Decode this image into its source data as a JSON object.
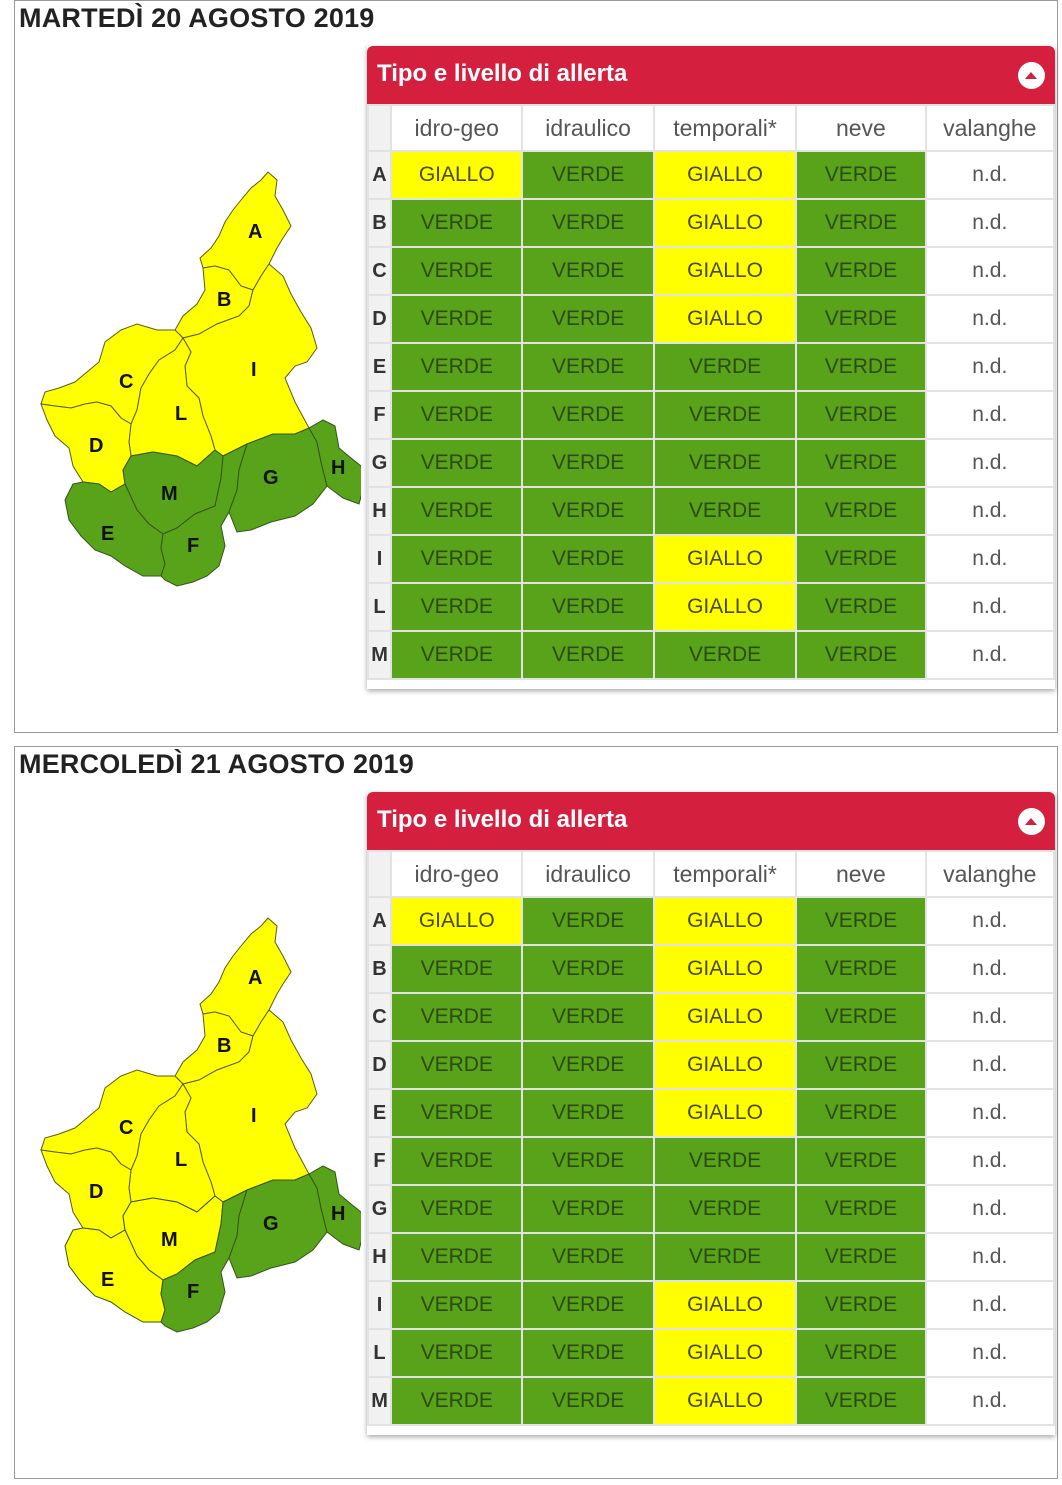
{
  "colors": {
    "VERDE": "#58a31a",
    "GIALLO": "#ffff00",
    "header": "#d41f3e"
  },
  "panel": {
    "title": "Tipo e livello di allerta",
    "collapse_icon": "chevron-up-icon"
  },
  "columns": [
    "idro-geo",
    "idraulico",
    "temporali*",
    "neve",
    "valanghe"
  ],
  "days": [
    {
      "title": "MARTEDÌ 20 AGOSTO 2019",
      "map_zones": {
        "A": "GIALLO",
        "B": "GIALLO",
        "C": "GIALLO",
        "D": "GIALLO",
        "E": "VERDE",
        "F": "VERDE",
        "G": "VERDE",
        "H": "VERDE",
        "I": "GIALLO",
        "L": "GIALLO",
        "M": "VERDE"
      },
      "rows": [
        {
          "zone": "A",
          "values": [
            "GIALLO",
            "VERDE",
            "GIALLO",
            "VERDE",
            "n.d."
          ]
        },
        {
          "zone": "B",
          "values": [
            "VERDE",
            "VERDE",
            "GIALLO",
            "VERDE",
            "n.d."
          ]
        },
        {
          "zone": "C",
          "values": [
            "VERDE",
            "VERDE",
            "GIALLO",
            "VERDE",
            "n.d."
          ]
        },
        {
          "zone": "D",
          "values": [
            "VERDE",
            "VERDE",
            "GIALLO",
            "VERDE",
            "n.d."
          ]
        },
        {
          "zone": "E",
          "values": [
            "VERDE",
            "VERDE",
            "VERDE",
            "VERDE",
            "n.d."
          ]
        },
        {
          "zone": "F",
          "values": [
            "VERDE",
            "VERDE",
            "VERDE",
            "VERDE",
            "n.d."
          ]
        },
        {
          "zone": "G",
          "values": [
            "VERDE",
            "VERDE",
            "VERDE",
            "VERDE",
            "n.d."
          ]
        },
        {
          "zone": "H",
          "values": [
            "VERDE",
            "VERDE",
            "VERDE",
            "VERDE",
            "n.d."
          ]
        },
        {
          "zone": "I",
          "values": [
            "VERDE",
            "VERDE",
            "GIALLO",
            "VERDE",
            "n.d."
          ]
        },
        {
          "zone": "L",
          "values": [
            "VERDE",
            "VERDE",
            "GIALLO",
            "VERDE",
            "n.d."
          ]
        },
        {
          "zone": "M",
          "values": [
            "VERDE",
            "VERDE",
            "VERDE",
            "VERDE",
            "n.d."
          ]
        }
      ]
    },
    {
      "title": "MERCOLEDÌ 21 AGOSTO 2019",
      "map_zones": {
        "A": "GIALLO",
        "B": "GIALLO",
        "C": "GIALLO",
        "D": "GIALLO",
        "E": "GIALLO",
        "F": "VERDE",
        "G": "VERDE",
        "H": "VERDE",
        "I": "GIALLO",
        "L": "GIALLO",
        "M": "GIALLO"
      },
      "rows": [
        {
          "zone": "A",
          "values": [
            "GIALLO",
            "VERDE",
            "GIALLO",
            "VERDE",
            "n.d."
          ]
        },
        {
          "zone": "B",
          "values": [
            "VERDE",
            "VERDE",
            "GIALLO",
            "VERDE",
            "n.d."
          ]
        },
        {
          "zone": "C",
          "values": [
            "VERDE",
            "VERDE",
            "GIALLO",
            "VERDE",
            "n.d."
          ]
        },
        {
          "zone": "D",
          "values": [
            "VERDE",
            "VERDE",
            "GIALLO",
            "VERDE",
            "n.d."
          ]
        },
        {
          "zone": "E",
          "values": [
            "VERDE",
            "VERDE",
            "GIALLO",
            "VERDE",
            "n.d."
          ]
        },
        {
          "zone": "F",
          "values": [
            "VERDE",
            "VERDE",
            "VERDE",
            "VERDE",
            "n.d."
          ]
        },
        {
          "zone": "G",
          "values": [
            "VERDE",
            "VERDE",
            "VERDE",
            "VERDE",
            "n.d."
          ]
        },
        {
          "zone": "H",
          "values": [
            "VERDE",
            "VERDE",
            "VERDE",
            "VERDE",
            "n.d."
          ]
        },
        {
          "zone": "I",
          "values": [
            "VERDE",
            "VERDE",
            "GIALLO",
            "VERDE",
            "n.d."
          ]
        },
        {
          "zone": "L",
          "values": [
            "VERDE",
            "VERDE",
            "GIALLO",
            "VERDE",
            "n.d."
          ]
        },
        {
          "zone": "M",
          "values": [
            "VERDE",
            "VERDE",
            "GIALLO",
            "VERDE",
            "n.d."
          ]
        }
      ]
    }
  ]
}
